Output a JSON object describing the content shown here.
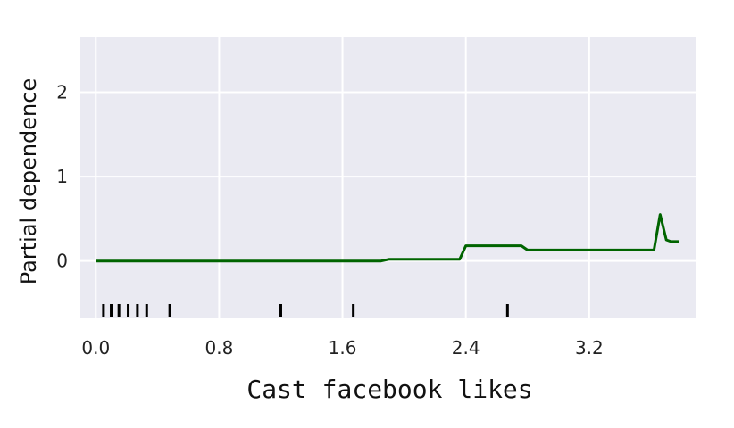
{
  "chart_data": {
    "type": "line",
    "title": "",
    "xlabel": "Cast facebook likes",
    "ylabel": "Partial dependence",
    "xlim": [
      -0.1,
      3.89
    ],
    "ylim": [
      -0.68,
      2.65
    ],
    "x_ticks": [
      0.0,
      0.8,
      1.6,
      2.4,
      3.2
    ],
    "x_tick_labels": [
      "0.0",
      "0.8",
      "1.6",
      "2.4",
      "3.2"
    ],
    "y_ticks": [
      0,
      1,
      2
    ],
    "y_tick_labels": [
      "0",
      "1",
      "2"
    ],
    "grid": true,
    "legend": "none",
    "colors": {
      "background": "#eaeaf2",
      "grid": "#ffffff",
      "line": "#006400",
      "rug": "#000000"
    },
    "series": [
      {
        "x": [
          0.0,
          1.85,
          1.9,
          2.36,
          2.4,
          2.76,
          2.8,
          3.62,
          3.66,
          3.7,
          3.73,
          3.78
        ],
        "y": [
          0.0,
          0.0,
          0.02,
          0.02,
          0.18,
          0.18,
          0.13,
          0.13,
          0.55,
          0.25,
          0.23,
          0.23
        ]
      }
    ],
    "rug": [
      0.05,
      0.1,
      0.15,
      0.21,
      0.27,
      0.33,
      0.48,
      1.2,
      1.67,
      2.67
    ]
  }
}
